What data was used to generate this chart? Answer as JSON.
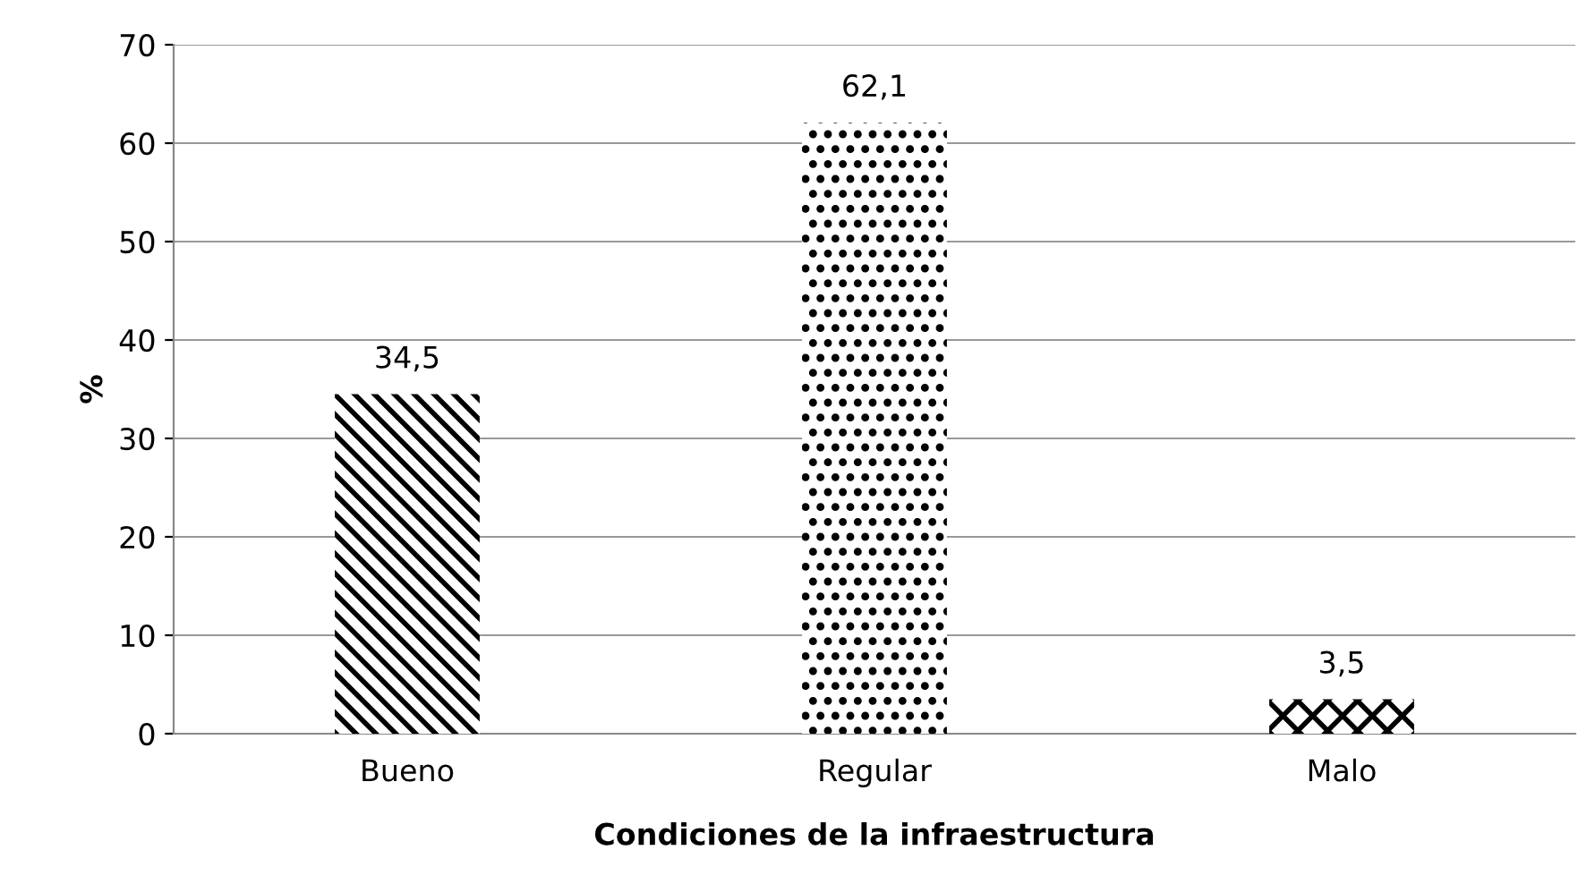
{
  "chart_data": {
    "type": "bar",
    "xlabel": "Condiciones de la infraestructura",
    "ylabel": "%",
    "categories": [
      "Bueno",
      "Regular",
      "Malo"
    ],
    "values": [
      34.5,
      62.1,
      3.5
    ],
    "value_labels": [
      "34,5",
      "62,1",
      "3,5"
    ],
    "color": "#000000",
    "ylim": [
      0,
      70
    ],
    "yticks": [
      0,
      10,
      20,
      30,
      40,
      50,
      60,
      70
    ],
    "grid": "y"
  }
}
